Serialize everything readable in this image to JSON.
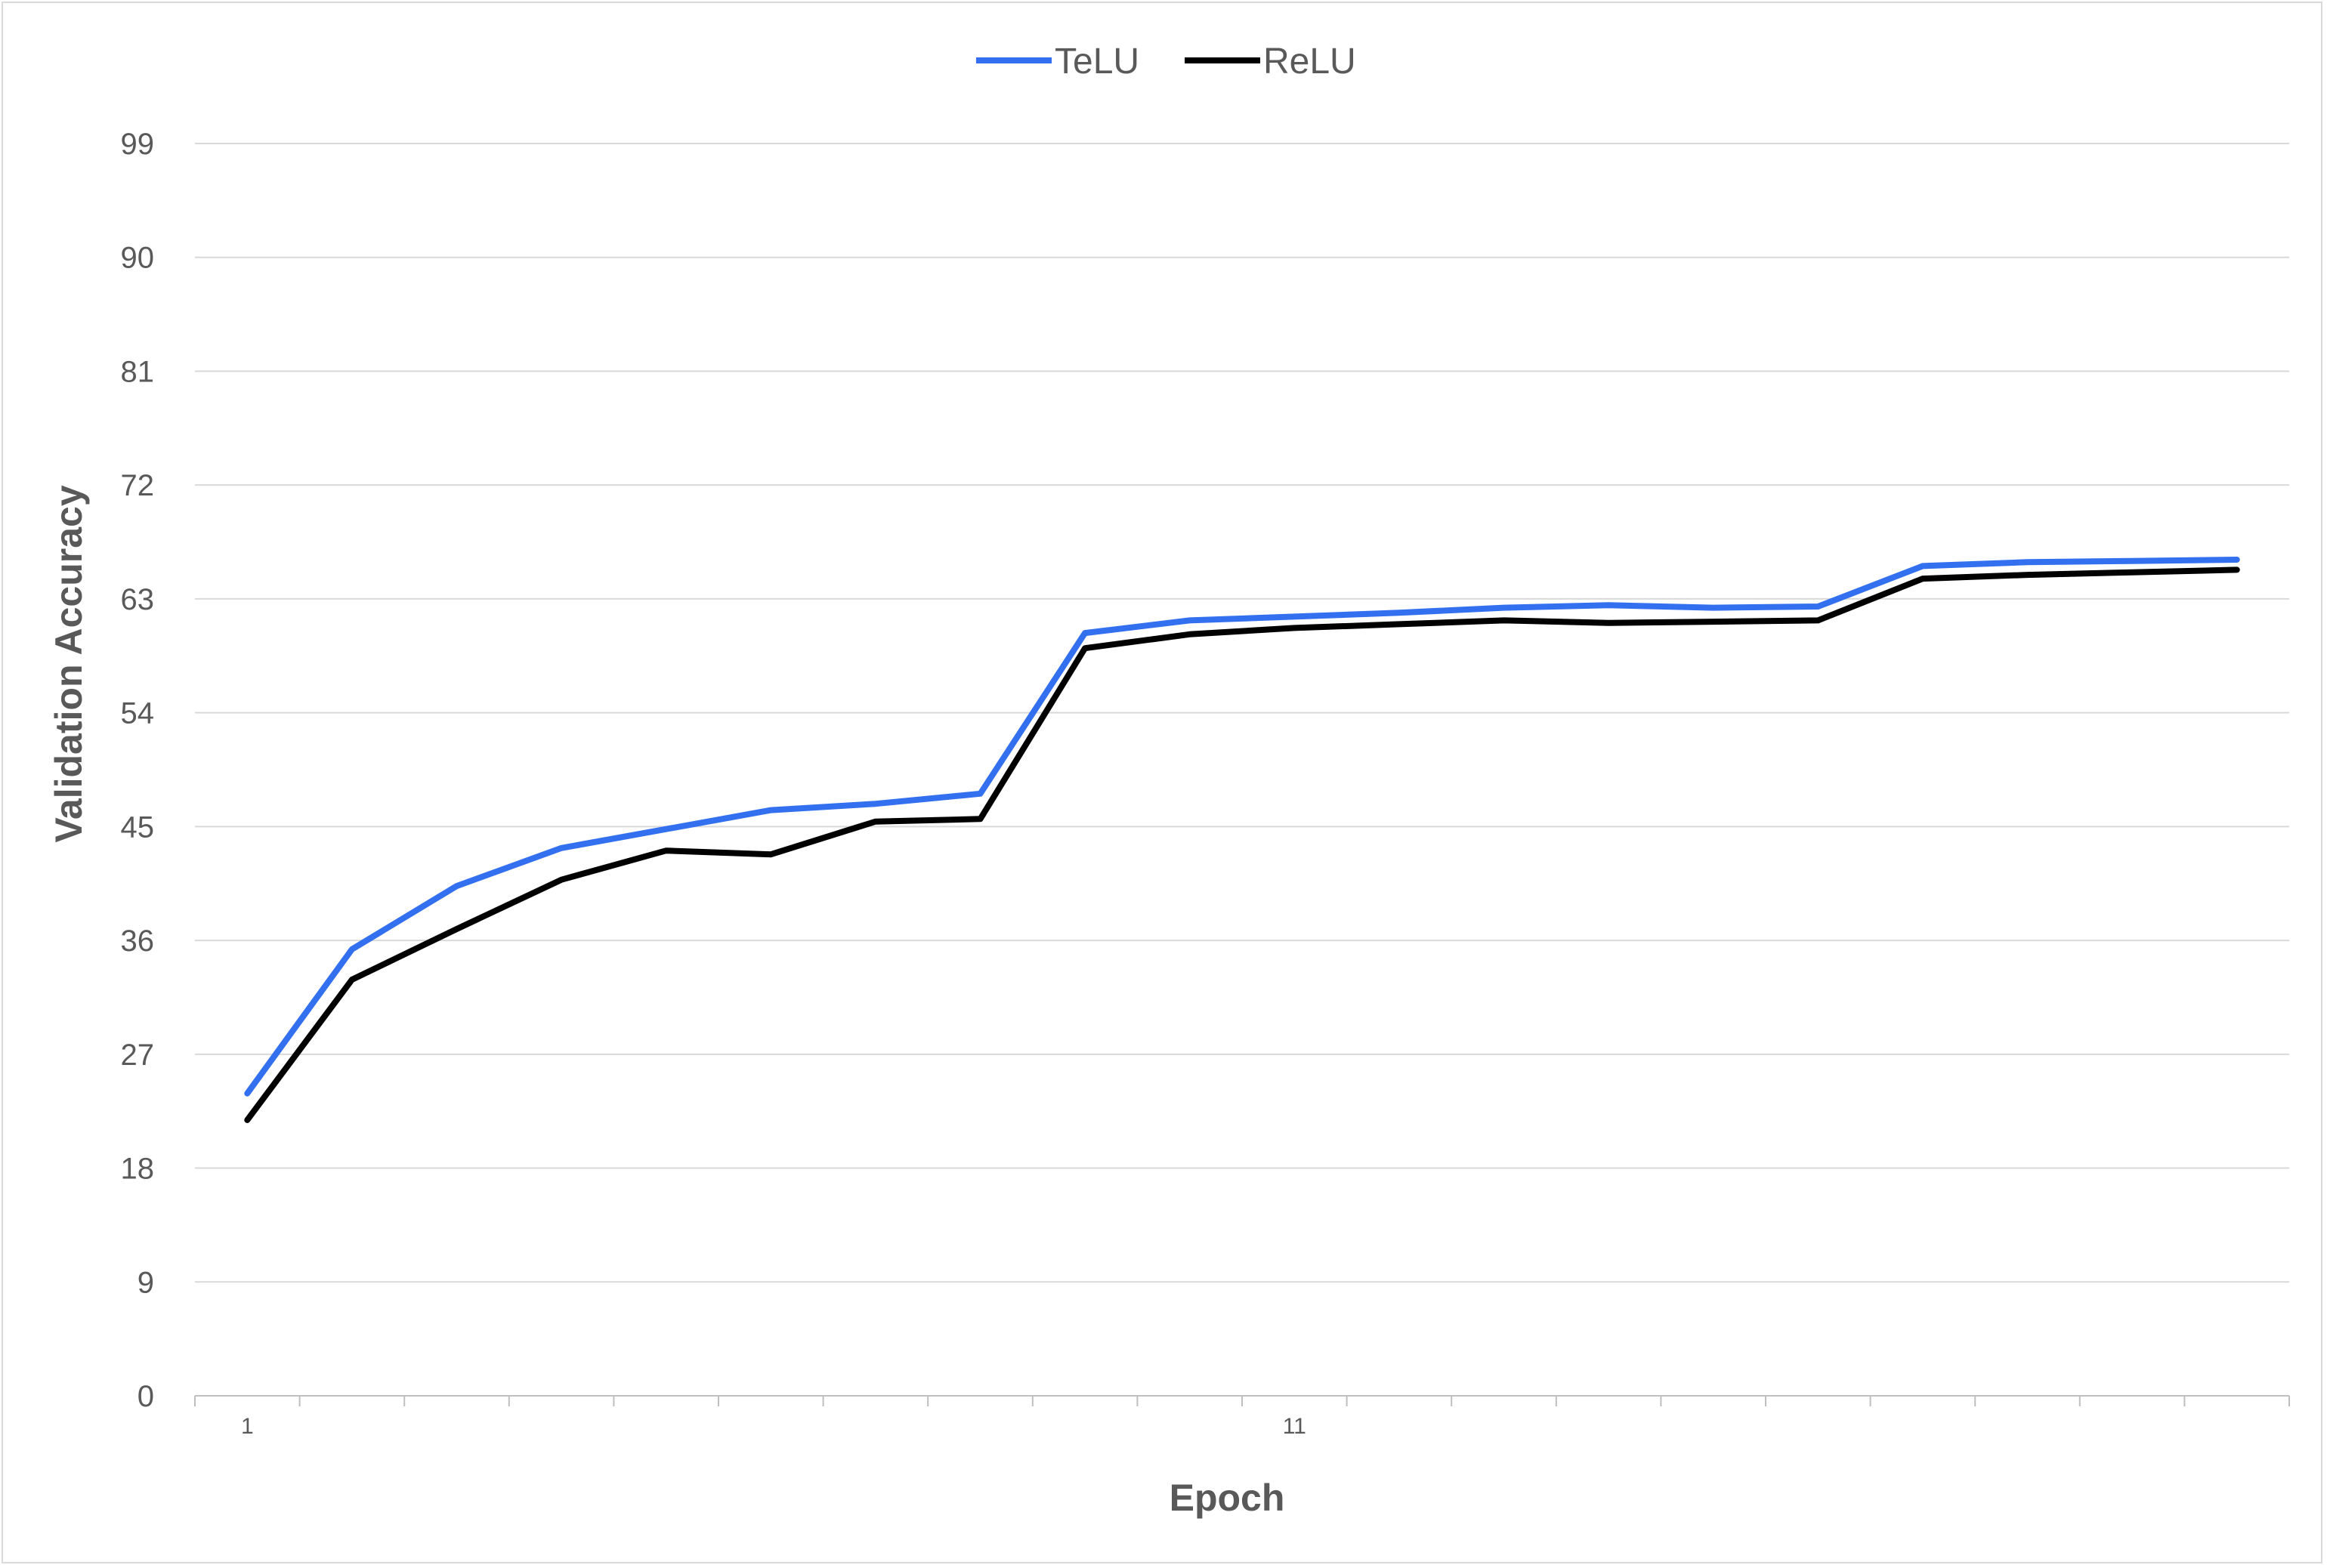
{
  "chart_data": {
    "type": "line",
    "title": "",
    "xlabel": "Epoch",
    "ylabel": "Validation Accuracy",
    "x": [
      1,
      2,
      3,
      4,
      5,
      6,
      7,
      8,
      9,
      10,
      11,
      12,
      13,
      14,
      15,
      16,
      17,
      18,
      19,
      20
    ],
    "x_tick_labels": [
      "1",
      "11"
    ],
    "ylim": [
      0,
      99
    ],
    "y_ticks": [
      0,
      9,
      18,
      27,
      36,
      45,
      54,
      63,
      72,
      81,
      90,
      99
    ],
    "grid": true,
    "legend_position": "top",
    "series": [
      {
        "name": "TeLU",
        "color": "#3370f0",
        "values": [
          23.9,
          35.3,
          40.3,
          43.3,
          44.8,
          46.3,
          46.8,
          47.6,
          60.3,
          61.3,
          61.6,
          61.9,
          62.3,
          62.5,
          62.3,
          62.4,
          65.6,
          65.9,
          66.0,
          66.1
        ]
      },
      {
        "name": "ReLU",
        "color": "#000000",
        "values": [
          21.8,
          32.9,
          36.9,
          40.8,
          43.1,
          42.8,
          45.4,
          45.6,
          59.1,
          60.2,
          60.7,
          61.0,
          61.3,
          61.1,
          61.2,
          61.3,
          64.6,
          64.9,
          65.1,
          65.3
        ]
      }
    ]
  }
}
